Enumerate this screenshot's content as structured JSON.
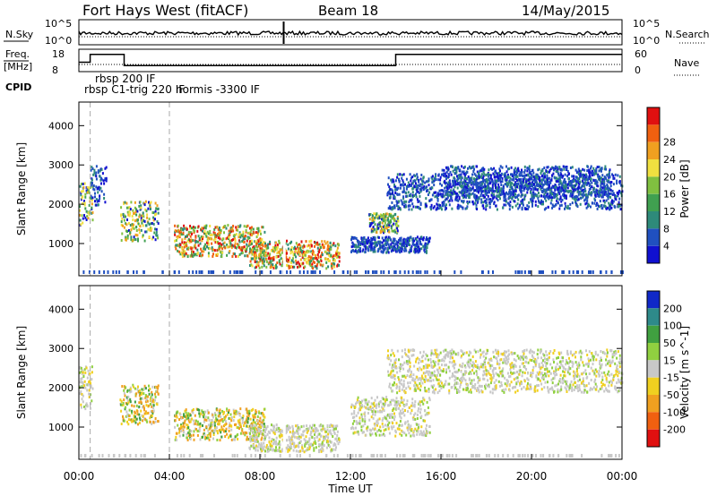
{
  "header": {
    "radar": "Fort Hays West (fitACF)",
    "beam": "Beam 18",
    "date": "14/May/2015"
  },
  "summary": {
    "nsky_label": "N.Sky",
    "nsky_ticks": [
      "10^5",
      "10^0"
    ],
    "nsearch_label": "N.Search",
    "nsearch_ticks": [
      "10^5",
      "10^0"
    ],
    "freq_label_1": "Freq.",
    "freq_label_2": "[MHz]",
    "freq_ticks": [
      "18",
      "8"
    ],
    "nave_label": "Nave",
    "nave_ticks": [
      "60",
      "0"
    ],
    "cpid_label": "CPID",
    "cpid_entries": [
      {
        "label": "rbsp 200 IF",
        "row": 0
      },
      {
        "label": "rbsp C1-trig 220 IF",
        "row": 1
      },
      {
        "label": "normis -3300 IF",
        "row": 1
      }
    ],
    "freq_steps": [
      {
        "t": 0.0,
        "f": 12.2
      },
      {
        "t": 0.5,
        "f": 15.7
      },
      {
        "t": 2.0,
        "f": 10.7
      },
      {
        "t": 9.0,
        "f": 10.7
      },
      {
        "t": 9.15,
        "f": 10.7
      },
      {
        "t": 14.0,
        "f": 15.7
      },
      {
        "t": 24.0,
        "f": 15.7
      }
    ]
  },
  "panels": {
    "ylabel": "Slant Range [km]",
    "xlabel": "Time UT",
    "power_label": "Power [dB]",
    "velocity_label": "Velocity [m s^-1]"
  },
  "chart_data": [
    {
      "type": "heatmap",
      "title": "Power",
      "x_range_hours": [
        0,
        24
      ],
      "y_range_km": [
        180,
        4600
      ],
      "x_ticks": [
        "00:00",
        "04:00",
        "08:00",
        "12:00",
        "16:00",
        "20:00",
        "00:00"
      ],
      "y_ticks": [
        1000,
        2000,
        3000,
        4000
      ],
      "colorbar": {
        "label": "Power [dB]",
        "ticks": [
          4,
          8,
          12,
          16,
          20,
          24,
          28
        ],
        "colors": [
          "#1010d0",
          "#2050c0",
          "#2e8a7a",
          "#40a050",
          "#80c040",
          "#f0e040",
          "#f0a020",
          "#f06010",
          "#e01010"
        ]
      },
      "regions": [
        {
          "t0": 0.0,
          "t1": 0.6,
          "r0": 1500,
          "r1": 2600,
          "level": "mid"
        },
        {
          "t0": 0.5,
          "t1": 1.2,
          "r0": 2000,
          "r1": 3000,
          "level": "low"
        },
        {
          "t0": 1.8,
          "t1": 3.5,
          "r0": 1100,
          "r1": 2100,
          "level": "mid"
        },
        {
          "t0": 4.2,
          "t1": 8.2,
          "r0": 700,
          "r1": 1500,
          "level": "high"
        },
        {
          "t0": 7.5,
          "t1": 11.5,
          "r0": 400,
          "r1": 1100,
          "level": "high"
        },
        {
          "t0": 12.8,
          "t1": 14.1,
          "r0": 1300,
          "r1": 1800,
          "level": "mid"
        },
        {
          "t0": 12.0,
          "t1": 15.5,
          "r0": 800,
          "r1": 1200,
          "level": "low"
        },
        {
          "t0": 13.6,
          "t1": 24.0,
          "r0": 1900,
          "r1": 2800,
          "level": "low"
        },
        {
          "t0": 16.0,
          "t1": 23.5,
          "r0": 2200,
          "r1": 3000,
          "level": "low"
        }
      ]
    },
    {
      "type": "heatmap",
      "title": "Velocity",
      "x_range_hours": [
        0,
        24
      ],
      "y_range_km": [
        180,
        4600
      ],
      "x_ticks": [
        "00:00",
        "04:00",
        "08:00",
        "12:00",
        "16:00",
        "20:00",
        "00:00"
      ],
      "y_ticks": [
        1000,
        2000,
        3000,
        4000
      ],
      "colorbar": {
        "label": "Velocity [m s^-1]",
        "ticks": [
          200,
          100,
          50,
          15,
          -15,
          -50,
          -100,
          -200
        ],
        "colors": [
          "#1028c8",
          "#2e8a8a",
          "#40a040",
          "#90d040",
          "#c8c8c8",
          "#f0d020",
          "#f0a020",
          "#f06010",
          "#e01010"
        ]
      },
      "regions": [
        {
          "t0": 0.0,
          "t1": 0.6,
          "r0": 1500,
          "r1": 2600,
          "level": "grey"
        },
        {
          "t0": 1.8,
          "t1": 3.5,
          "r0": 1100,
          "r1": 2100,
          "level": "orange"
        },
        {
          "t0": 4.2,
          "t1": 8.2,
          "r0": 700,
          "r1": 1500,
          "level": "orange"
        },
        {
          "t0": 7.5,
          "t1": 11.5,
          "r0": 400,
          "r1": 1100,
          "level": "grey"
        },
        {
          "t0": 12.0,
          "t1": 15.5,
          "r0": 800,
          "r1": 1800,
          "level": "grey"
        },
        {
          "t0": 13.6,
          "t1": 24.0,
          "r0": 1900,
          "r1": 3000,
          "level": "grey"
        }
      ]
    }
  ]
}
